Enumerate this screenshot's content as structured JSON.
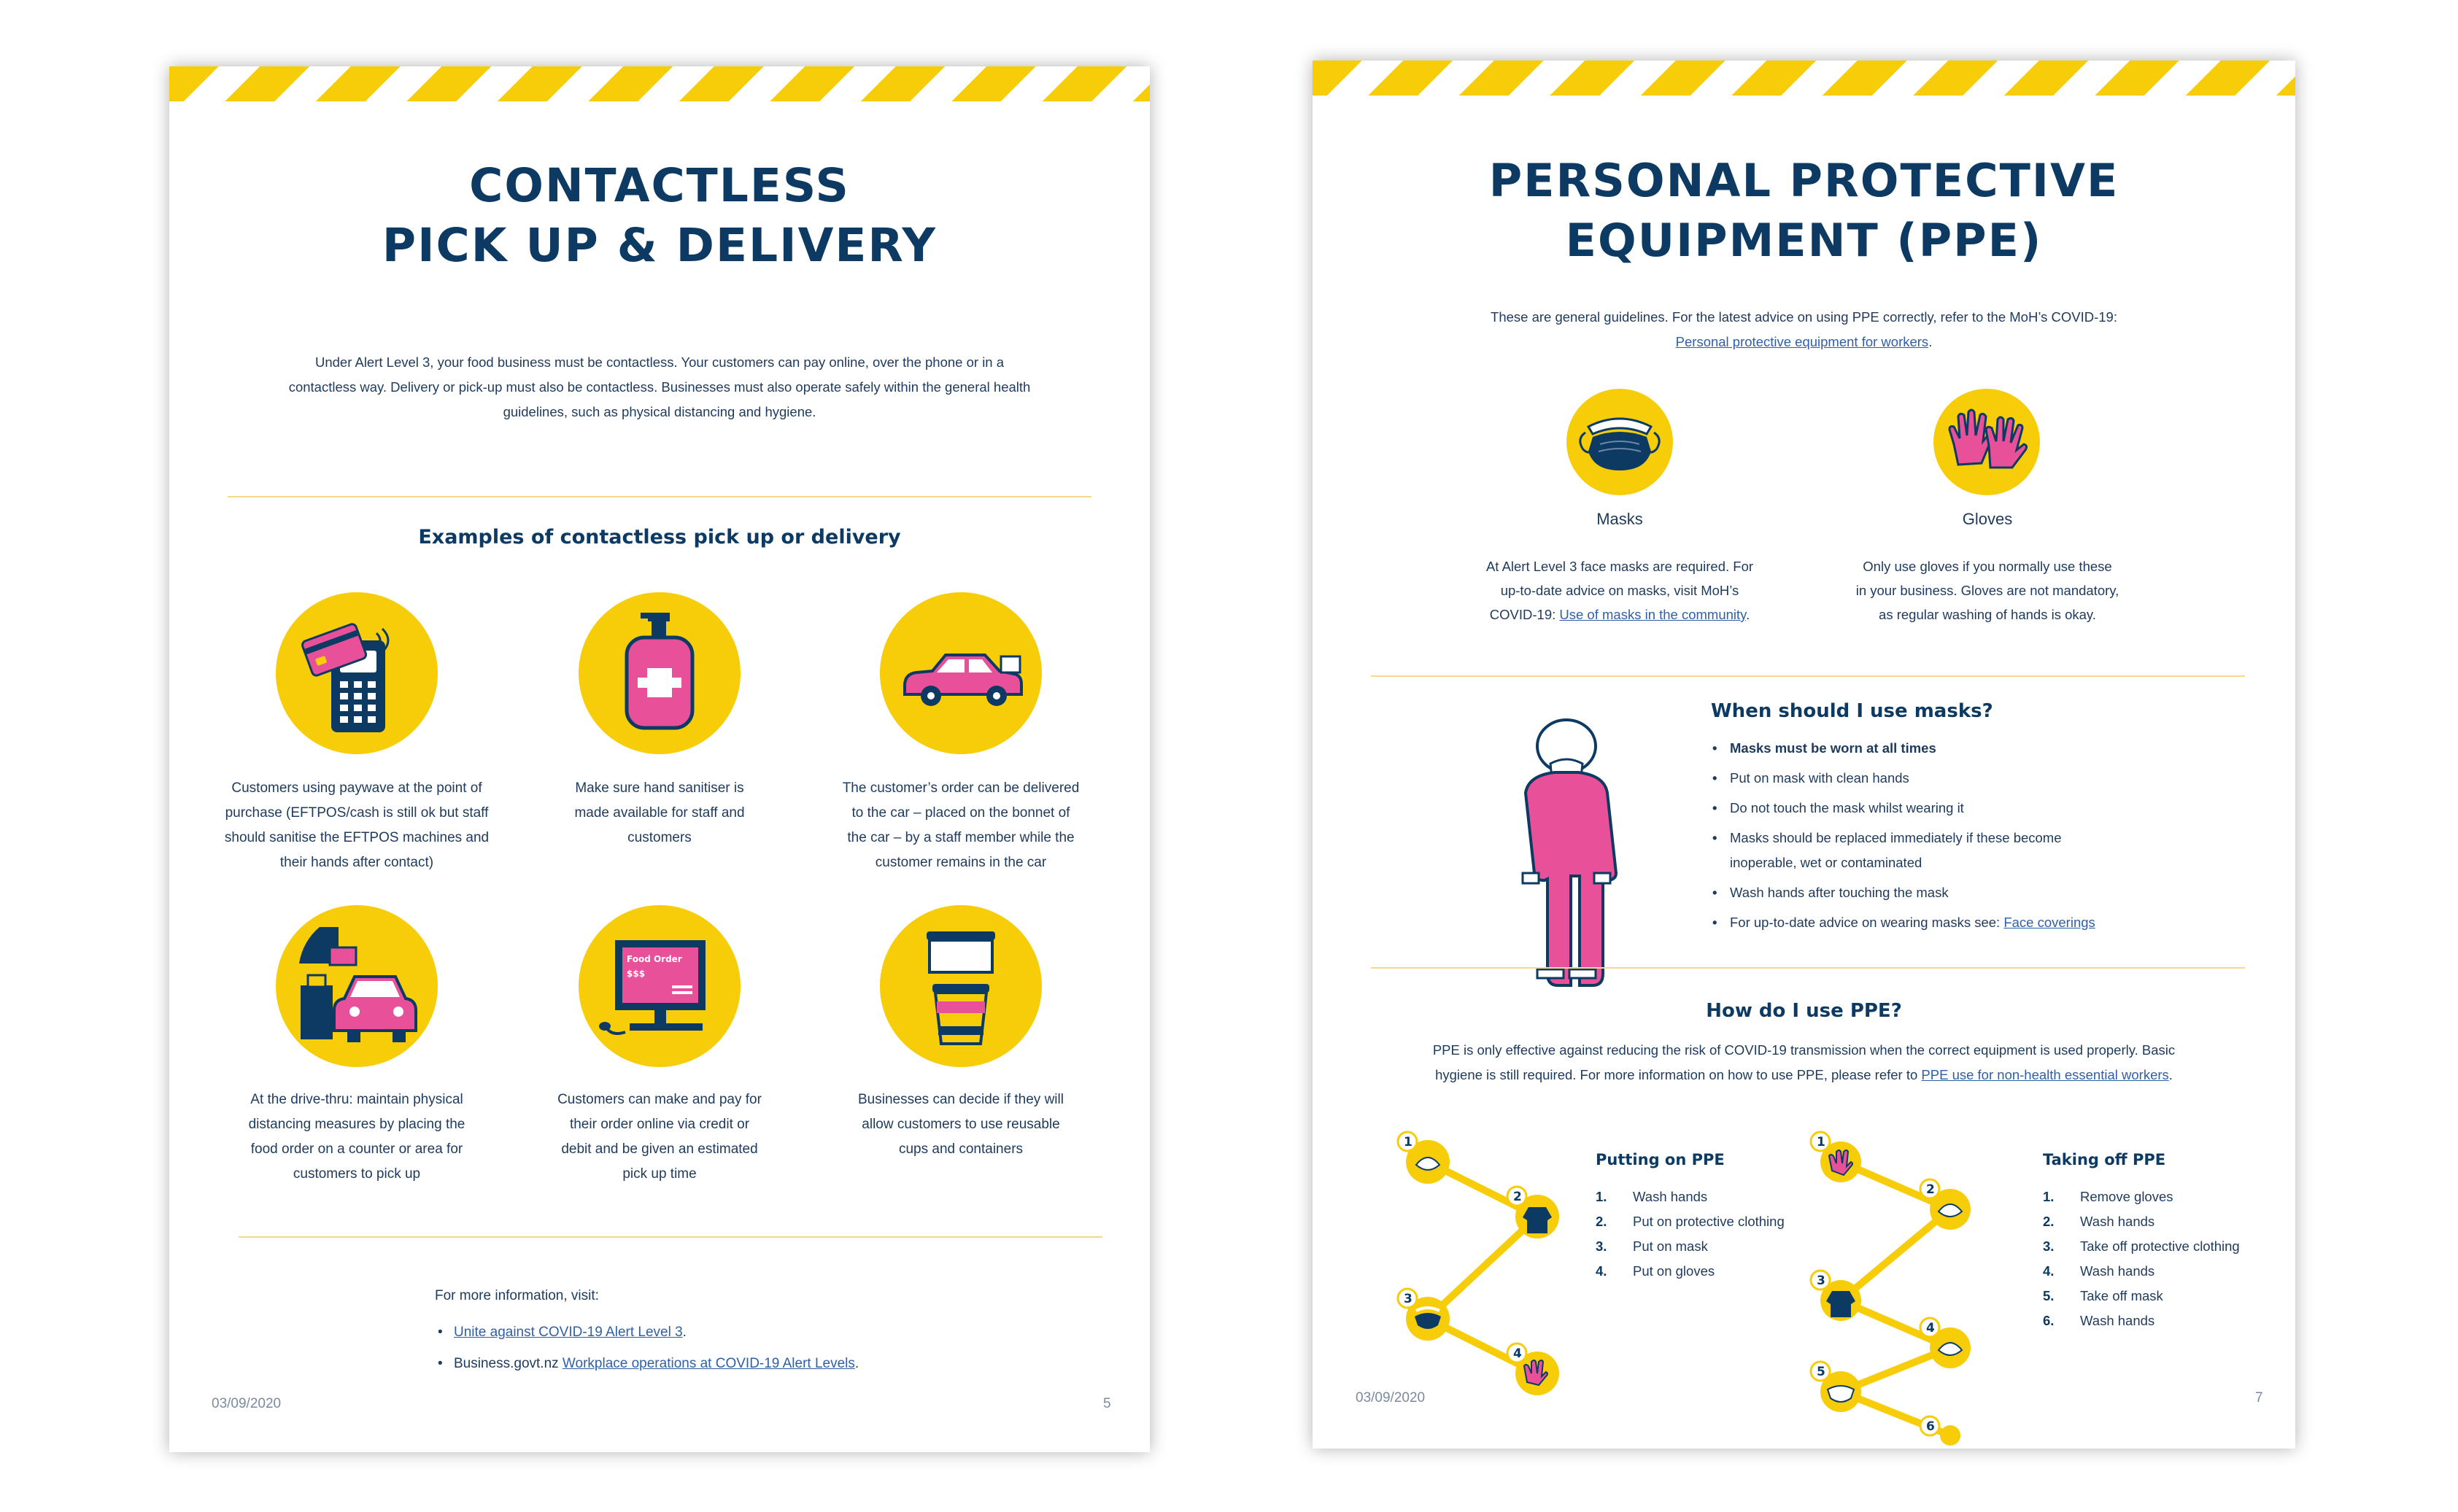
{
  "page1": {
    "title_line1": "CONTACTLESS",
    "title_line2": "PICK UP & DELIVERY",
    "intro_line1": "Under Alert Level 3, your food business must be contactless. Your customers can pay online, over the phone or in a",
    "intro_line2": "contactless way. Delivery or pick-up must also be contactless. Businesses must also operate safely within the general health",
    "intro_line3": "guidelines, such as physical distancing and hygiene.",
    "section_heading": "Examples of contactless pick up or delivery",
    "examples": [
      {
        "icon": "payment-terminal-icon",
        "lines": [
          "Customers using paywave at the point of",
          "purchase (EFTPOS/cash is still ok but staff",
          "should sanitise the EFTPOS machines and",
          "their hands after contact)"
        ]
      },
      {
        "icon": "hand-sanitiser-icon",
        "lines": [
          "Make sure hand sanitiser is",
          "made available for staff and",
          "customers"
        ]
      },
      {
        "icon": "car-delivery-icon",
        "lines": [
          "The customer’s order can be delivered",
          "to the car – placed on the bonnet of",
          "the car – by a staff member while the",
          "customer remains in the car"
        ]
      },
      {
        "icon": "drive-thru-icon",
        "lines": [
          "At the drive-thru: maintain physical",
          "distancing measures by placing the",
          "food order on a counter or area for",
          "customers to pick up"
        ]
      },
      {
        "icon": "computer-order-icon",
        "screen_title": "Food Order",
        "screen_price": "$$$",
        "lines": [
          "Customers can make and pay for",
          "their order online via credit or",
          "debit and be given an estimated",
          "pick up time"
        ]
      },
      {
        "icon": "reusable-cup-icon",
        "lines": [
          "Businesses can decide if they will",
          "allow customers to use reusable",
          "cups and containers"
        ]
      }
    ],
    "more_info_label": "For more information, visit:",
    "more_links": [
      {
        "prefix": "",
        "link": "Unite against COVID-19 Alert Level 3",
        "suffix": "."
      },
      {
        "prefix": "Business.govt.nz ",
        "link": "Workplace operations at COVID-19 Alert Levels",
        "suffix": "."
      }
    ],
    "date": "03/09/2020",
    "page_number": "5"
  },
  "page2": {
    "title_line1": "PERSONAL PROTECTIVE",
    "title_line2": "EQUIPMENT (PPE)",
    "intro_text": "These are general guidelines. For the latest advice on using PPE correctly, refer to the MoH’s COVID-19:",
    "intro_link": "Personal protective equipment for workers",
    "intro_end": ".",
    "masks": {
      "label": "Masks",
      "line1": "At Alert Level 3 face masks are required. For",
      "line2": "up-to-date advice on masks, visit MoH’s",
      "line3_prefix": "COVID-19: ",
      "line3_link": "Use of masks in the community",
      "line3_end": "."
    },
    "gloves": {
      "label": "Gloves",
      "line1": "Only use gloves if you normally use these",
      "line2": "in your business. Gloves are not mandatory,",
      "line3": "as regular washing of hands is okay."
    },
    "when_heading": "When should I use masks?",
    "when_bullets": [
      "Masks must be worn at all times",
      "Put on mask with clean hands",
      "Do not touch the mask whilst wearing it",
      "Masks should be replaced immediately if these become",
      "Wash hands after touching the mask"
    ],
    "when_bullet4_line2": "inoperable, wet or contaminated",
    "when_last_prefix": "For up-to-date advice on wearing masks see: ",
    "when_last_link": "Face coverings",
    "how_heading": "How do I use PPE?",
    "how_line1": "PPE is only effective against reducing the risk of COVID-19 transmission when the correct equipment is used properly. Basic",
    "how_line2_prefix": "hygiene is still required. For more information on how to use PPE, please refer to ",
    "how_line2_link": "PPE use for non-health essential workers",
    "how_line2_end": ".",
    "putting_on": {
      "title": "Putting on PPE",
      "steps": [
        {
          "n": "1.",
          "text": "Wash hands"
        },
        {
          "n": "2.",
          "text": "Put on protective clothing"
        },
        {
          "n": "3.",
          "text": "Put on mask"
        },
        {
          "n": "4.",
          "text": "Put on gloves"
        }
      ],
      "node_numbers": [
        "1",
        "2",
        "3",
        "4"
      ]
    },
    "taking_off": {
      "title": "Taking off PPE",
      "steps": [
        {
          "n": "1.",
          "text": "Remove gloves"
        },
        {
          "n": "2.",
          "text": "Wash hands"
        },
        {
          "n": "3.",
          "text": "Take off protective clothing"
        },
        {
          "n": "4.",
          "text": "Wash hands"
        },
        {
          "n": "5.",
          "text": "Take off mask"
        },
        {
          "n": "6.",
          "text": "Wash hands"
        }
      ],
      "node_numbers": [
        "1",
        "2",
        "3",
        "4",
        "5",
        "6"
      ]
    },
    "date": "03/09/2020",
    "page_number": "7"
  },
  "colors": {
    "yellow": "#f7cd0a",
    "navy": "#0d3a63",
    "pink": "#e8509a",
    "link": "#2f5fa8"
  }
}
